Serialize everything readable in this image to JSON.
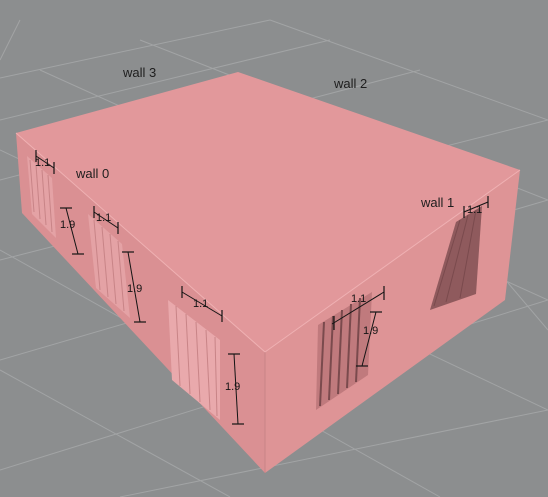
{
  "colors": {
    "background": "#8c8e8f",
    "grid": "#a2a4a5",
    "box_top": "#e2989b",
    "box_left": "#da9093",
    "box_right": "#de9496",
    "opening_dark": "#8f5a5d",
    "opening_light": "#e9a9ac"
  },
  "labels": {
    "wall_0": "wall 0",
    "wall_1": "wall 1",
    "wall_2": "wall 2",
    "wall_3": "wall 3"
  },
  "dimensions": {
    "wall0_window1_width": "1.1",
    "wall0_window1_height": "1.9",
    "wall0_window2_width": "1.1",
    "wall0_window2_height": "1.9",
    "wall0_window3_width": "1.1",
    "wall0_window3_height": "1.9",
    "wall1_window1_width": "1.1",
    "wall1_window1_height": "1.9",
    "wall1_window2_width": "1.1"
  }
}
